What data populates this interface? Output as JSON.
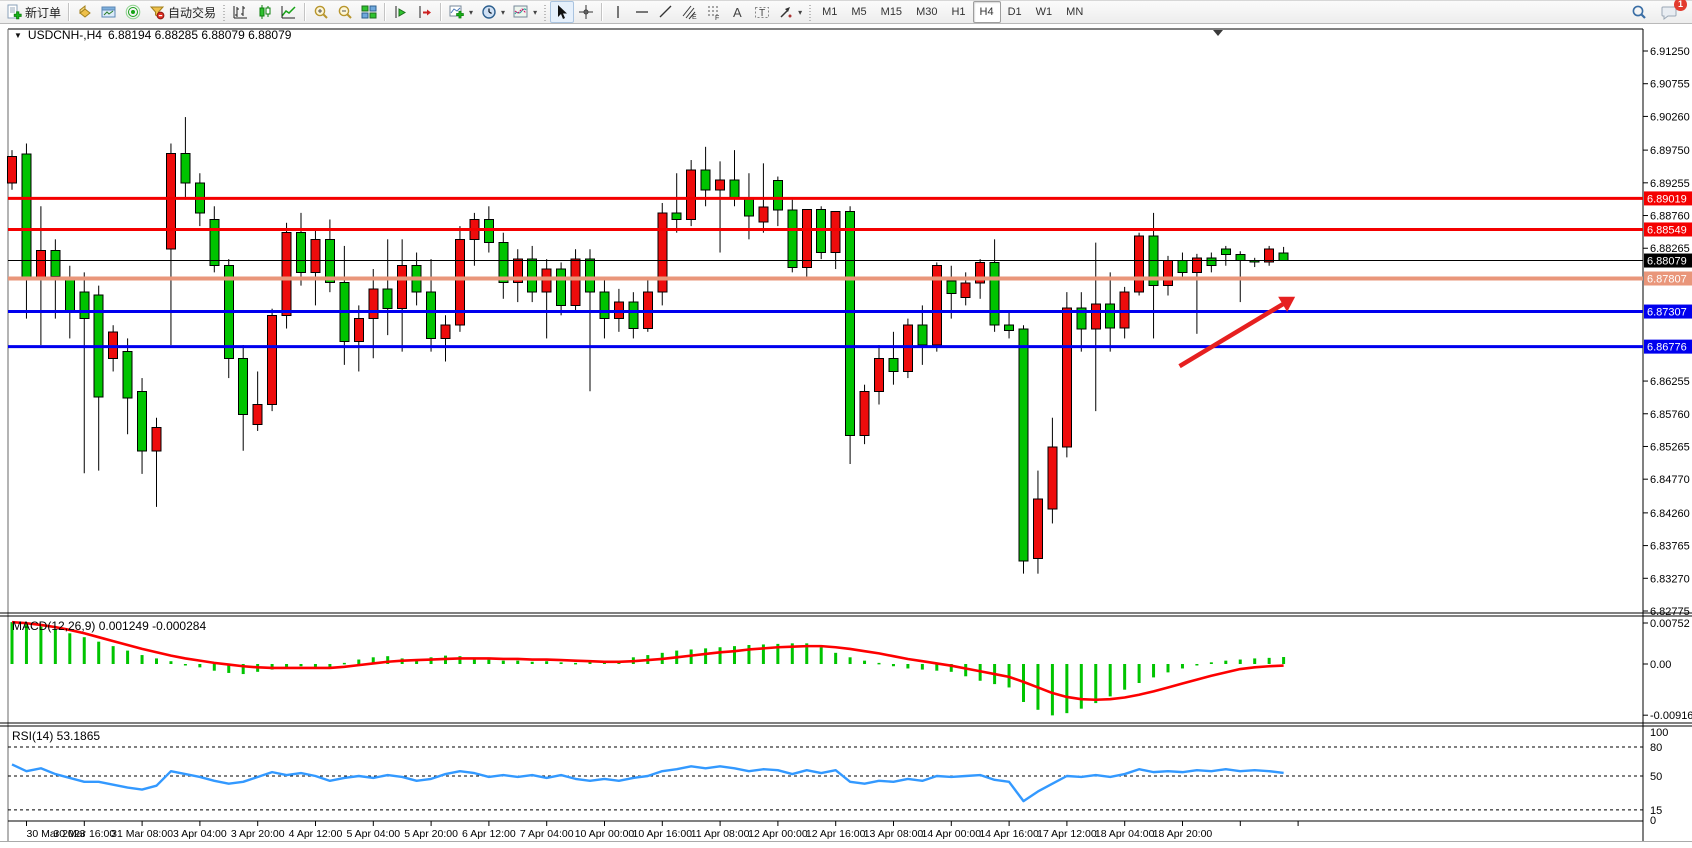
{
  "toolbar": {
    "new_order_label": "新订单",
    "autotrade_label": "自动交易",
    "timeframes": [
      "M1",
      "M5",
      "M15",
      "M30",
      "H1",
      "H4",
      "D1",
      "W1",
      "MN"
    ],
    "active_timeframe": "H4",
    "chat_badge": "1"
  },
  "chart": {
    "dropdown_marker": "▼",
    "symbol": "USDCNH-,H4",
    "ohlc_display": "6.88194 6.88285 6.88079 6.88079"
  },
  "price_axis": {
    "ticks": [
      "6.91250",
      "6.90755",
      "6.90260",
      "6.89750",
      "6.89255",
      "6.88760",
      "6.88265",
      "6.86255",
      "6.85760",
      "6.85265",
      "6.84770",
      "6.84260",
      "6.83765",
      "6.83270",
      "6.82775"
    ],
    "badges": [
      {
        "label": "6.89019",
        "price": 6.89019,
        "color": "#f40000",
        "text": "#ffffff"
      },
      {
        "label": "6.88549",
        "price": 6.88549,
        "color": "#f40000",
        "text": "#ffffff"
      },
      {
        "label": "6.88079",
        "price": 6.88079,
        "color": "#000000",
        "text": "#ffffff"
      },
      {
        "label": "6.87807",
        "price": 6.87807,
        "color": "#e9967a",
        "text": "#ffffff"
      },
      {
        "label": "6.87307",
        "price": 6.87307,
        "color": "#0000ee",
        "text": "#ffffff"
      },
      {
        "label": "6.86776",
        "price": 6.86776,
        "color": "#0000ee",
        "text": "#ffffff"
      }
    ]
  },
  "hlines": [
    {
      "price": 6.89019,
      "color": "#f40000",
      "width": 3
    },
    {
      "price": 6.88549,
      "color": "#f40000",
      "width": 3
    },
    {
      "price": 6.88079,
      "color": "#000000",
      "width": 1
    },
    {
      "price": 6.87807,
      "color": "#e9967a",
      "width": 4
    },
    {
      "price": 6.87307,
      "color": "#0000ee",
      "width": 3
    },
    {
      "price": 6.86776,
      "color": "#0000ee",
      "width": 3
    }
  ],
  "time_axis": {
    "labels": [
      "30 Mar 2023",
      "30 Mar 16:00",
      "31 Mar 08:00",
      "3 Apr 04:00",
      "3 Apr 20:00",
      "4 Apr 12:00",
      "5 Apr 04:00",
      "5 Apr 20:00",
      "6 Apr 12:00",
      "7 Apr 04:00",
      "10 Apr 00:00",
      "10 Apr 16:00",
      "11 Apr 08:00",
      "12 Apr 00:00",
      "12 Apr 16:00",
      "13 Apr 08:00",
      "14 Apr 00:00",
      "14 Apr 16:00",
      "17 Apr 12:00",
      "18 Apr 04:00",
      "18 Apr 20:00"
    ]
  },
  "panels": {
    "macd": {
      "label": "MACD(12,26,9) 0.001249 -0.000284",
      "axis_labels": [
        "0.00752",
        "0.00",
        "-0.009164"
      ],
      "axis_values": [
        0.00752,
        0,
        -0.009164
      ]
    },
    "rsi": {
      "label": "RSI(14) 53.1865",
      "axis_labels": [
        "100",
        "80",
        "50",
        "15",
        "0"
      ],
      "axis_values": [
        100,
        80,
        50,
        15,
        0
      ],
      "dashed_levels": [
        80,
        50,
        15
      ]
    }
  },
  "annotation_arrow": {
    "x1_bar": 80.8,
    "p1": 6.8648,
    "x2_bar": 88.8,
    "p2": 6.8753,
    "color": "#e62020"
  },
  "chart_data": [
    {
      "type": "candlestick",
      "symbol": "USDCNH",
      "timeframe": "H4",
      "up_color": "#ee0c0c",
      "down_color": "#00c400",
      "ylim": [
        6.82775,
        6.9125
      ],
      "ohlc": [
        [
          6.8925,
          6.8975,
          6.8915,
          6.8965
        ],
        [
          6.8969,
          6.8985,
          6.872,
          6.878
        ],
        [
          6.878,
          6.889,
          6.868,
          6.8823
        ],
        [
          6.8823,
          6.884,
          6.872,
          6.8784
        ],
        [
          6.878,
          6.88,
          6.869,
          6.873
        ],
        [
          6.876,
          6.879,
          6.8486,
          6.872
        ],
        [
          6.8756,
          6.877,
          6.849,
          6.8601
        ],
        [
          6.866,
          6.871,
          6.864,
          6.87
        ],
        [
          6.867,
          6.869,
          6.8545,
          6.86
        ],
        [
          6.861,
          6.863,
          6.8485,
          6.852
        ],
        [
          6.852,
          6.857,
          6.8435,
          6.8555
        ],
        [
          6.8825,
          6.8985,
          6.868,
          6.897
        ],
        [
          6.897,
          6.9025,
          6.89,
          6.8925
        ],
        [
          6.8925,
          6.894,
          6.886,
          6.888
        ],
        [
          6.887,
          6.889,
          6.879,
          6.88
        ],
        [
          6.88,
          6.881,
          6.863,
          6.866
        ],
        [
          6.866,
          6.868,
          6.852,
          6.8575
        ],
        [
          6.856,
          6.864,
          6.855,
          6.859
        ],
        [
          6.859,
          6.8735,
          6.858,
          6.8725
        ],
        [
          6.8725,
          6.8865,
          6.8705,
          6.885
        ],
        [
          6.885,
          6.888,
          6.877,
          6.879
        ],
        [
          6.879,
          6.8855,
          6.874,
          6.884
        ],
        [
          6.884,
          6.887,
          6.876,
          6.8775
        ],
        [
          6.8775,
          6.883,
          6.865,
          6.8685
        ],
        [
          6.8685,
          6.874,
          6.864,
          6.872
        ],
        [
          6.872,
          6.8795,
          6.866,
          6.8765
        ],
        [
          6.8765,
          6.884,
          6.8695,
          6.8735
        ],
        [
          6.8735,
          6.884,
          6.867,
          6.88
        ],
        [
          6.88,
          6.882,
          6.874,
          6.876
        ],
        [
          6.876,
          6.881,
          6.867,
          6.869
        ],
        [
          6.869,
          6.8725,
          6.8655,
          6.871
        ],
        [
          6.871,
          6.886,
          6.87,
          6.884
        ],
        [
          6.884,
          6.888,
          6.88,
          6.887
        ],
        [
          6.887,
          6.889,
          6.882,
          6.8835
        ],
        [
          6.8835,
          6.885,
          6.875,
          6.8775
        ],
        [
          6.8775,
          6.8825,
          6.8745,
          6.881
        ],
        [
          6.881,
          6.883,
          6.8745,
          6.876
        ],
        [
          6.876,
          6.881,
          6.869,
          6.8795
        ],
        [
          6.8795,
          6.8805,
          6.8725,
          6.874
        ],
        [
          6.874,
          6.8825,
          6.873,
          6.881
        ],
        [
          6.881,
          6.8825,
          6.861,
          6.876
        ],
        [
          6.876,
          6.878,
          6.869,
          6.872
        ],
        [
          6.872,
          6.8765,
          6.87,
          6.8745
        ],
        [
          6.8745,
          6.876,
          6.869,
          6.8705
        ],
        [
          6.8705,
          6.878,
          6.87,
          6.876
        ],
        [
          6.876,
          6.8895,
          6.874,
          6.888
        ],
        [
          6.888,
          6.894,
          6.885,
          6.887
        ],
        [
          6.887,
          6.896,
          6.886,
          6.8945
        ],
        [
          6.8945,
          6.898,
          6.889,
          6.8915
        ],
        [
          6.8915,
          6.8958,
          6.882,
          6.893
        ],
        [
          6.893,
          6.8975,
          6.889,
          6.8902
        ],
        [
          6.8902,
          6.894,
          6.884,
          6.8875
        ],
        [
          6.8866,
          6.8955,
          6.885,
          6.8889
        ],
        [
          6.8929,
          6.8935,
          6.886,
          6.8884
        ],
        [
          6.8884,
          6.89,
          6.879,
          6.8797
        ],
        [
          6.8797,
          6.8885,
          6.878,
          6.8885
        ],
        [
          6.8885,
          6.889,
          6.881,
          6.882
        ],
        [
          6.882,
          6.8882,
          6.8795,
          6.8882
        ],
        [
          6.8882,
          6.889,
          6.85,
          6.8543
        ],
        [
          6.8543,
          6.862,
          6.853,
          6.861
        ],
        [
          6.861,
          6.868,
          6.859,
          6.866
        ],
        [
          6.866,
          6.87,
          6.862,
          6.864
        ],
        [
          6.864,
          6.872,
          6.863,
          6.871
        ],
        [
          6.871,
          6.874,
          6.865,
          6.868
        ],
        [
          6.868,
          6.8805,
          6.867,
          6.88
        ],
        [
          6.8777,
          6.88,
          6.872,
          6.8758
        ],
        [
          6.8752,
          6.879,
          6.874,
          6.8774
        ],
        [
          6.8774,
          6.881,
          6.875,
          6.8805
        ],
        [
          6.8805,
          6.884,
          6.87,
          6.871
        ],
        [
          6.871,
          6.873,
          6.869,
          6.8702
        ],
        [
          6.8704,
          6.871,
          6.8334,
          6.8353
        ],
        [
          6.8357,
          6.849,
          6.8334,
          6.8447
        ],
        [
          6.8432,
          6.857,
          6.841,
          6.8526
        ],
        [
          6.8526,
          6.876,
          6.851,
          6.8736
        ],
        [
          6.8736,
          6.876,
          6.867,
          6.8704
        ],
        [
          6.8704,
          6.8835,
          6.858,
          6.8742
        ],
        [
          6.8742,
          6.879,
          6.867,
          6.8706
        ],
        [
          6.8706,
          6.8768,
          6.869,
          6.876
        ],
        [
          6.876,
          6.885,
          6.8755,
          6.8845
        ],
        [
          6.8845,
          6.888,
          6.869,
          6.877
        ],
        [
          6.877,
          6.8815,
          6.8755,
          6.8808
        ],
        [
          6.8808,
          6.882,
          6.878,
          6.879
        ],
        [
          6.879,
          6.8818,
          6.8697,
          6.8812
        ],
        [
          6.8812,
          6.882,
          6.879,
          6.88
        ],
        [
          6.8825,
          6.883,
          6.88,
          6.8817
        ],
        [
          6.8817,
          6.8822,
          6.8745,
          6.8808
        ],
        [
          6.8808,
          6.8812,
          6.8798,
          6.8806
        ],
        [
          6.8806,
          6.883,
          6.88,
          6.8825
        ],
        [
          6.88194,
          6.88285,
          6.88079,
          6.88079
        ]
      ]
    },
    {
      "type": "bar",
      "name": "MACD(12,26,9) histogram",
      "bar_color": "#00c400",
      "signal_color": "#fd0000",
      "ylim": [
        -0.009164,
        0.00752
      ],
      "values": [
        0.0075,
        0.0071,
        0.0067,
        0.0061,
        0.0055,
        0.0048,
        0.004,
        0.0032,
        0.0024,
        0.0016,
        0.001,
        0.0005,
        0.0,
        -0.0006,
        -0.0012,
        -0.0016,
        -0.0018,
        -0.0014,
        -0.001,
        -0.0006,
        -0.0004,
        -0.0008,
        -0.0006,
        0.0002,
        0.0008,
        0.0012,
        0.0014,
        0.001,
        0.0008,
        0.0012,
        0.0015,
        0.0014,
        0.001,
        0.0008,
        0.0006,
        0.0006,
        0.0004,
        0.0005,
        0.0003,
        0.0002,
        0.0004,
        0.0003,
        0.0006,
        0.0012,
        0.0016,
        0.002,
        0.0024,
        0.0026,
        0.0028,
        0.003,
        0.0032,
        0.0034,
        0.0035,
        0.0036,
        0.0037,
        0.0037,
        0.003,
        0.002,
        0.0012,
        0.0006,
        0.0002,
        -0.0004,
        -0.0008,
        -0.001,
        -0.0012,
        -0.0014,
        -0.0022,
        -0.003,
        -0.0036,
        -0.0042,
        -0.0068,
        -0.0082,
        -0.0092,
        -0.0088,
        -0.008,
        -0.007,
        -0.0058,
        -0.0046,
        -0.0034,
        -0.0024,
        -0.0015,
        -0.0008,
        -0.0002,
        0.0003,
        0.0006,
        0.0008,
        0.001,
        0.0011,
        0.001249
      ],
      "signal": [
        0.0075,
        0.0073,
        0.007,
        0.0066,
        0.0061,
        0.0055,
        0.0048,
        0.0041,
        0.0034,
        0.0027,
        0.0021,
        0.0015,
        0.001,
        0.0006,
        0.0002,
        -0.0001,
        -0.0004,
        -0.0006,
        -0.0007,
        -0.0007,
        -0.0007,
        -0.0007,
        -0.0007,
        -0.0005,
        -0.0002,
        0.0001,
        0.0004,
        0.0006,
        0.0007,
        0.0008,
        0.0009,
        0.001,
        0.001,
        0.001,
        0.0009,
        0.0009,
        0.0008,
        0.0008,
        0.0007,
        0.0006,
        0.0005,
        0.0004,
        0.0004,
        0.0005,
        0.0007,
        0.0009,
        0.0012,
        0.0015,
        0.0018,
        0.0021,
        0.0023,
        0.0026,
        0.0028,
        0.003,
        0.0031,
        0.0032,
        0.0032,
        0.003,
        0.0027,
        0.0023,
        0.0019,
        0.0014,
        0.0009,
        0.0005,
        0.0001,
        -0.0003,
        -0.0008,
        -0.0013,
        -0.0018,
        -0.0023,
        -0.0032,
        -0.0042,
        -0.0052,
        -0.0059,
        -0.0063,
        -0.0064,
        -0.0063,
        -0.006,
        -0.0055,
        -0.0049,
        -0.0042,
        -0.0035,
        -0.0028,
        -0.0021,
        -0.0015,
        -0.0009,
        -0.0006,
        -0.0004,
        -0.000284
      ]
    },
    {
      "type": "line",
      "name": "RSI(14)",
      "line_color": "#3399ff",
      "ylim": [
        0,
        100
      ],
      "values": [
        62,
        55,
        58,
        52,
        48,
        44,
        44,
        41,
        38,
        36,
        40,
        55,
        52,
        49,
        45,
        42,
        44,
        49,
        54,
        51,
        53,
        50,
        45,
        48,
        50,
        48,
        51,
        49,
        45,
        47,
        52,
        55,
        53,
        49,
        51,
        49,
        51,
        48,
        51,
        47,
        45,
        47,
        45,
        48,
        50,
        55,
        57,
        60,
        58,
        60,
        58,
        55,
        57,
        56,
        52,
        56,
        53,
        56,
        44,
        42,
        45,
        44,
        47,
        45,
        50,
        49,
        50,
        51,
        46,
        44,
        24,
        34,
        42,
        50,
        49,
        51,
        49,
        52,
        57,
        54,
        55,
        54,
        56,
        55,
        57,
        55,
        56,
        55,
        53.1865
      ]
    }
  ]
}
